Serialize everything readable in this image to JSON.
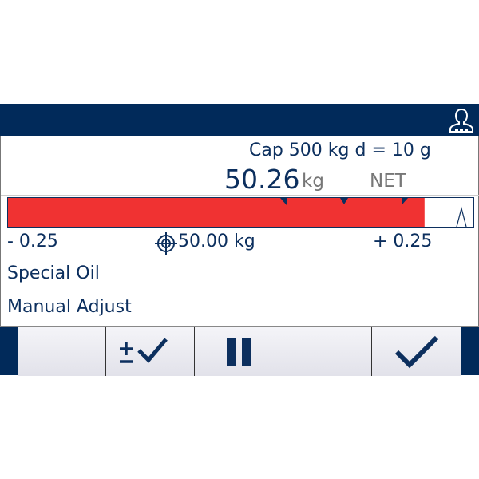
{
  "header": {
    "user_icon": "user-icon"
  },
  "scale_info": "Cap 500 kg d = 10 g",
  "weight": {
    "value": "50.26",
    "unit": "kg",
    "mode": "NET"
  },
  "bargraph": {
    "fill_percent": 89.5,
    "fill_color": "#f03232",
    "tolerance_markers": 3
  },
  "tolerance": {
    "minus": "- 0.25",
    "target": "50.00 kg",
    "plus": "+ 0.25"
  },
  "info_lines": [
    "Special Oil",
    "Manual Adjust"
  ],
  "softkeys": [
    {
      "icon": ""
    },
    {
      "icon": "plus-minus-check-icon"
    },
    {
      "icon": "pause-icon"
    },
    {
      "icon": ""
    },
    {
      "icon": "check-icon"
    }
  ],
  "colors": {
    "navy": "#012a5a",
    "text": "#0c2f5e",
    "gray": "#777777"
  }
}
